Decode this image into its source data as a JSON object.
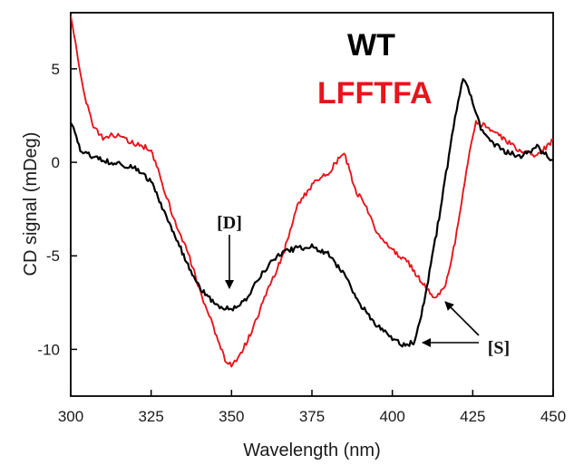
{
  "chart_data": {
    "type": "line",
    "xlabel": "Wavelength (nm)",
    "ylabel": "CD signal (mDeg)",
    "xlim": [
      300,
      450
    ],
    "ylim": [
      -12.5,
      8
    ],
    "xticks": [
      300,
      325,
      350,
      375,
      400,
      425,
      450
    ],
    "yticks": [
      5,
      0,
      -5,
      -10
    ],
    "grid": false,
    "legend_placement": "top-right",
    "series": [
      {
        "name": "WT",
        "color": "#000000",
        "x": [
          300,
          303,
          306,
          310,
          315,
          320,
          325,
          328,
          332,
          336,
          340,
          345,
          350,
          355,
          360,
          365,
          370,
          375,
          380,
          385,
          390,
          395,
          400,
          404,
          407,
          409,
          412,
          415,
          418,
          420,
          422,
          424,
          426,
          428,
          430,
          435,
          440,
          445,
          450
        ],
        "y": [
          2.2,
          0.6,
          0.4,
          0.1,
          -0.1,
          -0.3,
          -1.0,
          -2.2,
          -3.8,
          -5.3,
          -6.7,
          -7.6,
          -7.9,
          -7.2,
          -5.8,
          -4.9,
          -4.6,
          -4.5,
          -4.9,
          -6.0,
          -7.6,
          -8.7,
          -9.4,
          -9.8,
          -9.6,
          -8.2,
          -5.5,
          -2.5,
          0.8,
          2.8,
          4.5,
          3.8,
          2.6,
          1.6,
          1.2,
          0.6,
          0.3,
          0.8,
          0.1
        ]
      },
      {
        "name": "LFFTFA",
        "color": "#e8141c",
        "x": [
          300,
          302,
          304,
          307,
          310,
          313,
          316,
          320,
          325,
          328,
          332,
          337,
          340,
          344,
          348,
          350,
          352,
          355,
          358,
          362,
          366,
          370,
          375,
          380,
          385,
          388,
          392,
          396,
          400,
          405,
          410,
          413,
          416,
          418,
          420,
          422,
          424,
          426,
          430,
          435,
          440,
          445,
          450
        ],
        "y": [
          7.8,
          5.8,
          3.8,
          1.9,
          1.3,
          1.5,
          1.3,
          1.0,
          0.7,
          -0.9,
          -3.0,
          -5.1,
          -6.8,
          -8.6,
          -10.6,
          -10.8,
          -10.5,
          -9.5,
          -8.3,
          -6.5,
          -5.0,
          -2.5,
          -1.2,
          -0.6,
          0.6,
          -1.3,
          -2.5,
          -4.0,
          -4.7,
          -5.4,
          -6.6,
          -7.2,
          -6.8,
          -5.5,
          -3.8,
          -1.6,
          0.6,
          2.2,
          1.8,
          1.2,
          0.6,
          0.3,
          1.2
        ]
      }
    ],
    "annotations": [
      {
        "text": "[D]",
        "x": 350,
        "y": -6.0
      },
      {
        "text": "[S]",
        "x": 407,
        "y": -9.6
      }
    ]
  }
}
